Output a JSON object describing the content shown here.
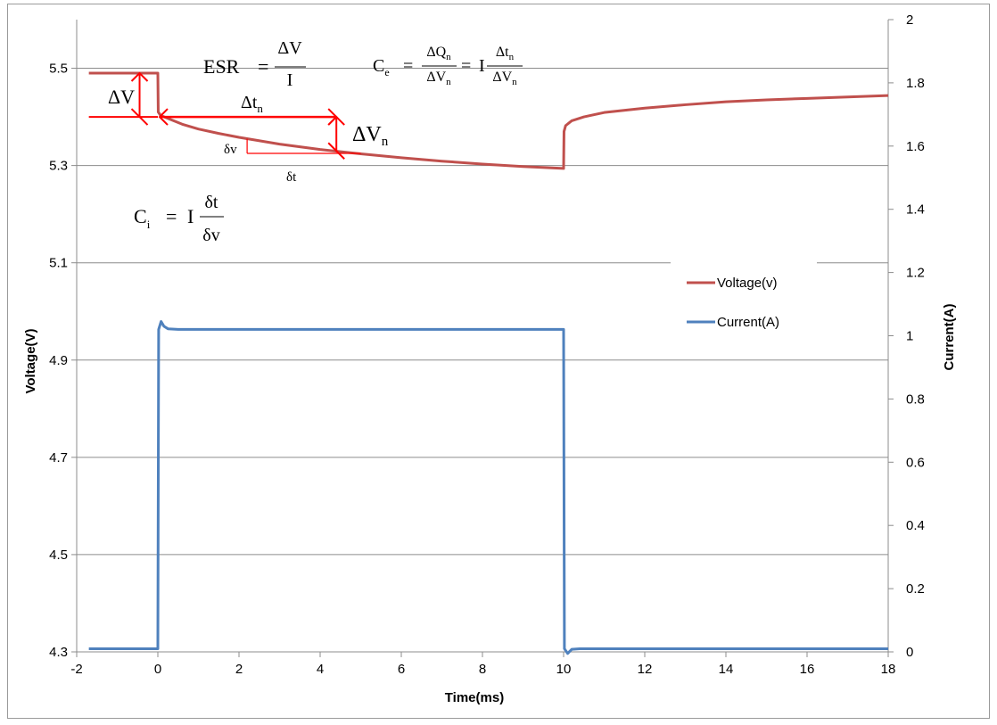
{
  "chart_data": {
    "type": "line",
    "title": "",
    "xlabel": "Time(ms)",
    "ylabel_left": "Voltage(V)",
    "ylabel_right": "Current(A)",
    "xlim": [
      -2,
      18
    ],
    "ylim_left": [
      4.3,
      5.6
    ],
    "ylim_right": [
      0,
      2
    ],
    "x_ticks": [
      -2,
      0,
      2,
      4,
      6,
      8,
      10,
      12,
      14,
      16,
      18
    ],
    "y_left_ticks": [
      4.3,
      4.5,
      4.7,
      4.9,
      5.1,
      5.3,
      5.5
    ],
    "y_right_ticks": [
      0,
      0.2,
      0.4,
      0.6,
      0.8,
      1,
      1.2,
      1.4,
      1.6,
      1.8,
      2
    ],
    "grid": "horizontal",
    "legend_position": "right",
    "series": [
      {
        "name": "Voltage(v)",
        "axis": "left",
        "color": "#c0504d",
        "x": [
          -1.7,
          0.0,
          0.01,
          0.05,
          0.1,
          0.3,
          0.6,
          1.0,
          1.5,
          2.0,
          3.0,
          4.0,
          5.0,
          6.0,
          7.0,
          8.0,
          9.0,
          10.0,
          10.01,
          10.05,
          10.2,
          10.5,
          11.0,
          12.0,
          13.0,
          14.0,
          15.0,
          16.0,
          17.0,
          18.0
        ],
        "y": [
          5.49,
          5.49,
          5.41,
          5.405,
          5.402,
          5.395,
          5.385,
          5.375,
          5.366,
          5.358,
          5.344,
          5.333,
          5.324,
          5.316,
          5.309,
          5.303,
          5.298,
          5.294,
          5.37,
          5.382,
          5.392,
          5.4,
          5.409,
          5.418,
          5.425,
          5.431,
          5.435,
          5.438,
          5.441,
          5.444
        ]
      },
      {
        "name": "Current(A)",
        "axis": "right",
        "color": "#4f81bd",
        "x": [
          -1.7,
          0.0,
          0.02,
          0.08,
          0.15,
          0.25,
          0.5,
          2.0,
          6.0,
          10.0,
          10.02,
          10.1,
          10.2,
          10.4,
          12.0,
          18.0
        ],
        "y": [
          0.01,
          0.01,
          1.02,
          1.045,
          1.03,
          1.022,
          1.02,
          1.02,
          1.02,
          1.02,
          0.01,
          -0.005,
          0.008,
          0.01,
          0.01,
          0.01
        ]
      }
    ],
    "annotations": {
      "esr": {
        "lhs": "ESR",
        "eq": "=",
        "num": "ΔV",
        "den": "I"
      },
      "ce": {
        "lhs": "C",
        "lhs_sub": "e",
        "eq1": "=",
        "num1": "ΔQ",
        "num1_sub": "n",
        "den1": "ΔV",
        "den1_sub": "n",
        "eq2": "=",
        "coef": "I",
        "num2": "Δt",
        "num2_sub": "n",
        "den2": "ΔV",
        "den2_sub": "n"
      },
      "ci": {
        "lhs": "C",
        "lhs_sub": "i",
        "eq": "=",
        "coef": "I",
        "num": "δt",
        "den": "δv"
      },
      "delta_v": "ΔV",
      "delta_t_n": {
        "base": "Δt",
        "sub": "n"
      },
      "delta_v_n": {
        "base": "ΔV",
        "sub": "n"
      },
      "small_dv": "δv",
      "small_dt": "δt"
    }
  }
}
